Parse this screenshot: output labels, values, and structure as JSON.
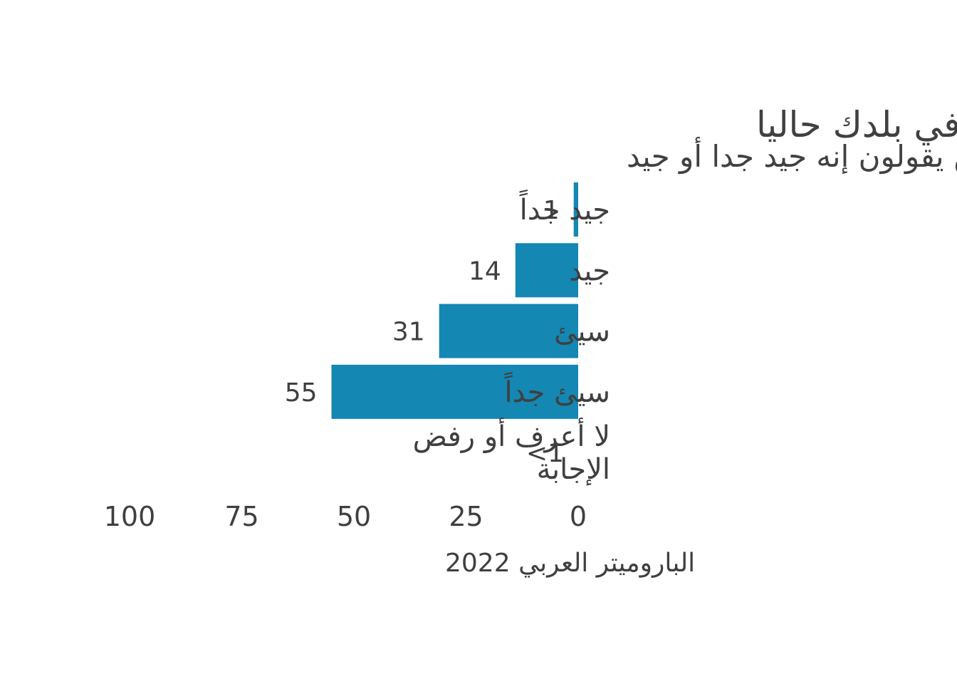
{
  "chart_data": {
    "type": "bar",
    "orientation": "horizontal",
    "title": "الوضع الاقتصادي العام في بلدك حاليا",
    "subtitle": "% من يقولون إنه جيد جدا أو جيد",
    "categories": [
      "جيد جداً",
      "جيد",
      "سيئ",
      "سيئ جداً",
      "لا أعرف أو رفض الإجابة"
    ],
    "category_lines": [
      [
        "جيد جداً"
      ],
      [
        "جيد"
      ],
      [
        "سيئ"
      ],
      [
        "سيئ جداً"
      ],
      [
        "لا أعرف أو رفض",
        "الإجابة"
      ]
    ],
    "values": [
      1,
      14,
      31,
      55,
      0
    ],
    "value_labels": [
      "1",
      "14",
      "31",
      "55",
      "<1"
    ],
    "xlim": [
      0,
      100
    ],
    "x_direction": "reversed",
    "xticks": [
      "0",
      "25",
      "50",
      "75",
      "100"
    ],
    "xtick_values": [
      0,
      25,
      50,
      75,
      100
    ],
    "source": "الباروميتر العربي 2022",
    "bar_color": "#1487b3",
    "grid": false,
    "legend": "none"
  }
}
